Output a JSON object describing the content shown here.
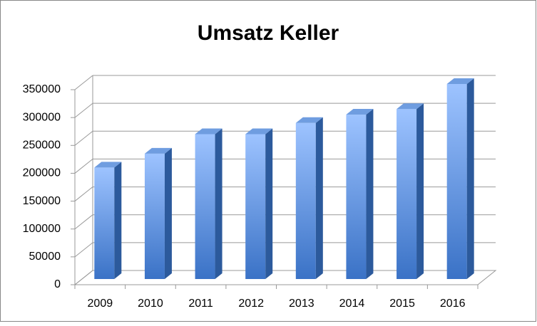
{
  "chart_data": {
    "type": "bar3d",
    "title": "Umsatz Keller",
    "categories": [
      "2009",
      "2010",
      "2011",
      "2012",
      "2013",
      "2014",
      "2015",
      "2016"
    ],
    "values": [
      200000,
      225000,
      260000,
      260000,
      280000,
      295000,
      305000,
      350000
    ],
    "color": "#4f81bd",
    "ylim": [
      0,
      350000
    ],
    "yticks": [
      0,
      50000,
      100000,
      150000,
      200000,
      250000,
      300000,
      350000
    ],
    "grid": true
  }
}
